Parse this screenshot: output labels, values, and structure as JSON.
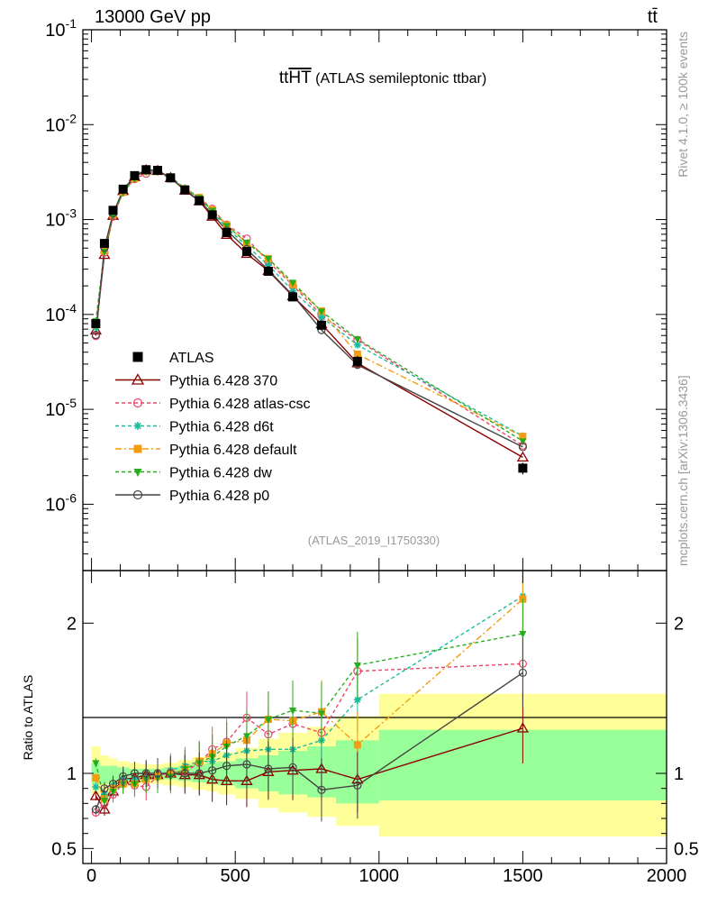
{
  "header": {
    "energy_label": "13000 GeV pp",
    "process_label": "tt̄",
    "plot_title": "tt̄HT (ATLAS semileptonic ttbar)",
    "plot_title_main": "tt",
    "plot_title_over": "HT",
    "plot_title_rest": " (ATLAS semileptonic ttbar)",
    "analysis_id": "(ATLAS_2019_I1750330)",
    "side_rivet": "Rivet 4.1.0, ≥ 100k events",
    "side_mcplots": "mcplots.cern.ch [arXiv:1306.3436]"
  },
  "colors": {
    "ATLAS": "#000000",
    "370": "#8b0000",
    "atlas-csc": "#e8476b",
    "d6t": "#1abc9c",
    "default": "#f39c12",
    "dw": "#27ae1f",
    "p0": "#444444",
    "band_outer": "#ffff99",
    "band_inner": "#99ff99"
  },
  "chart_data": {
    "type": "line",
    "title": "tt̄HT (ATLAS semileptonic ttbar)",
    "main_panel": {
      "yscale": "log",
      "ylim": [
        2e-07,
        0.1
      ],
      "y_ticks": [
        {
          "v": 1e-06,
          "label": "10^-6"
        },
        {
          "v": 1e-05,
          "label": "10^-5"
        },
        {
          "v": 0.0001,
          "label": "10^-4"
        },
        {
          "v": 0.001,
          "label": "10^-3"
        },
        {
          "v": 0.01,
          "label": "10^-2"
        },
        {
          "v": 0.1,
          "label": "10^-1"
        }
      ]
    },
    "ratio_panel": {
      "ylabel": "Ratio to ATLAS",
      "ylim": [
        0.4,
        2.35
      ],
      "y_ticks": [
        {
          "v": 0.5,
          "label": "0.5"
        },
        {
          "v": 1,
          "label": "1"
        },
        {
          "v": 2,
          "label": "2"
        }
      ]
    },
    "xlim": [
      -30,
      2000
    ],
    "x_ticks": [
      {
        "v": 0,
        "label": "0"
      },
      {
        "v": 500,
        "label": "500"
      },
      {
        "v": 1000,
        "label": "1000"
      },
      {
        "v": 1500,
        "label": "1500"
      },
      {
        "v": 2000,
        "label": "2000"
      }
    ],
    "x": [
      15,
      45,
      75,
      110,
      150,
      190,
      230,
      275,
      325,
      375,
      420,
      470,
      540,
      615,
      700,
      800,
      925,
      1500
    ],
    "data": {
      "name": "ATLAS",
      "values": [
        8e-05,
        0.00056,
        0.00125,
        0.00209,
        0.0029,
        0.00335,
        0.0033,
        0.00275,
        0.00205,
        0.00158,
        0.00112,
        0.00073,
        0.00046,
        0.000285,
        0.000153,
        7.7e-05,
        3.2e-05,
        2.4e-06
      ],
      "bin_edges": [
        0,
        30,
        60,
        90,
        130,
        170,
        210,
        250,
        300,
        350,
        400,
        440,
        500,
        580,
        650,
        750,
        850,
        1000,
        2000
      ],
      "band_inner": [
        [
          0.93,
          1.07
        ],
        [
          0.93,
          1.05
        ],
        [
          0.94,
          1.05
        ],
        [
          0.95,
          1.04
        ],
        [
          0.96,
          1.03
        ],
        [
          0.97,
          1.03
        ],
        [
          0.97,
          1.03
        ],
        [
          0.96,
          1.04
        ],
        [
          0.95,
          1.05
        ],
        [
          0.94,
          1.06
        ],
        [
          0.93,
          1.07
        ],
        [
          0.92,
          1.08
        ],
        [
          0.9,
          1.1
        ],
        [
          0.88,
          1.12
        ],
        [
          0.86,
          1.15
        ],
        [
          0.84,
          1.18
        ],
        [
          0.8,
          1.22
        ],
        [
          0.82,
          1.29
        ]
      ],
      "band_outer": [
        [
          0.86,
          1.18
        ],
        [
          0.87,
          1.12
        ],
        [
          0.89,
          1.1
        ],
        [
          0.91,
          1.08
        ],
        [
          0.92,
          1.07
        ],
        [
          0.93,
          1.06
        ],
        [
          0.93,
          1.06
        ],
        [
          0.92,
          1.07
        ],
        [
          0.91,
          1.09
        ],
        [
          0.89,
          1.11
        ],
        [
          0.88,
          1.12
        ],
        [
          0.86,
          1.14
        ],
        [
          0.83,
          1.17
        ],
        [
          0.77,
          1.23
        ],
        [
          0.74,
          1.27
        ],
        [
          0.71,
          1.31
        ],
        [
          0.65,
          1.38
        ],
        [
          0.58,
          1.53
        ]
      ]
    },
    "series": [
      {
        "name": "Pythia 6.428 370",
        "key": "370",
        "marker": "triangle-open",
        "dash": "",
        "ratio": [
          0.85,
          0.76,
          0.88,
          0.96,
          0.97,
          0.99,
          0.99,
          1.0,
          0.99,
          0.99,
          0.96,
          0.95,
          0.95,
          1.01,
          1.02,
          1.03,
          0.96,
          1.3
        ]
      },
      {
        "name": "Pythia 6.428 atlas-csc",
        "key": "atlas-csc",
        "marker": "circle-open",
        "dash": "4,3",
        "ratio": [
          0.74,
          0.8,
          0.86,
          0.93,
          0.92,
          0.91,
          0.98,
          1.01,
          1.01,
          1.07,
          1.16,
          1.21,
          1.37,
          1.26,
          1.33,
          1.27,
          1.68,
          1.73
        ]
      },
      {
        "name": "Pythia 6.428 d6t",
        "key": "d6t",
        "marker": "star",
        "dash": "4,3",
        "ratio": [
          0.91,
          0.86,
          0.92,
          0.96,
          0.96,
          0.97,
          0.98,
          1.02,
          1.05,
          1.08,
          1.08,
          1.12,
          1.15,
          1.16,
          1.16,
          1.22,
          1.49,
          2.18
        ]
      },
      {
        "name": "Pythia 6.428 default",
        "key": "default",
        "marker": "square",
        "dash": "7,3,2,3",
        "ratio": [
          0.97,
          0.83,
          0.9,
          0.93,
          0.93,
          0.96,
          0.98,
          1.0,
          1.03,
          1.08,
          1.13,
          1.2,
          1.22,
          1.36,
          1.35,
          1.41,
          1.19,
          2.16
        ]
      },
      {
        "name": "Pythia 6.428 dw",
        "key": "dw",
        "marker": "triangle-down",
        "dash": "4,3",
        "ratio": [
          1.07,
          0.82,
          0.88,
          0.93,
          0.93,
          0.96,
          0.97,
          0.98,
          1.03,
          1.07,
          1.11,
          1.18,
          1.25,
          1.36,
          1.42,
          1.4,
          1.72,
          1.93
        ]
      },
      {
        "name": "Pythia 6.428 p0",
        "key": "p0",
        "marker": "circle-open",
        "dash": "",
        "ratio": [
          0.76,
          0.9,
          0.93,
          0.98,
          1.0,
          1.0,
          1.0,
          1.0,
          1.0,
          1.0,
          1.02,
          1.05,
          1.06,
          1.03,
          1.04,
          0.89,
          0.92,
          1.67
        ]
      }
    ]
  }
}
